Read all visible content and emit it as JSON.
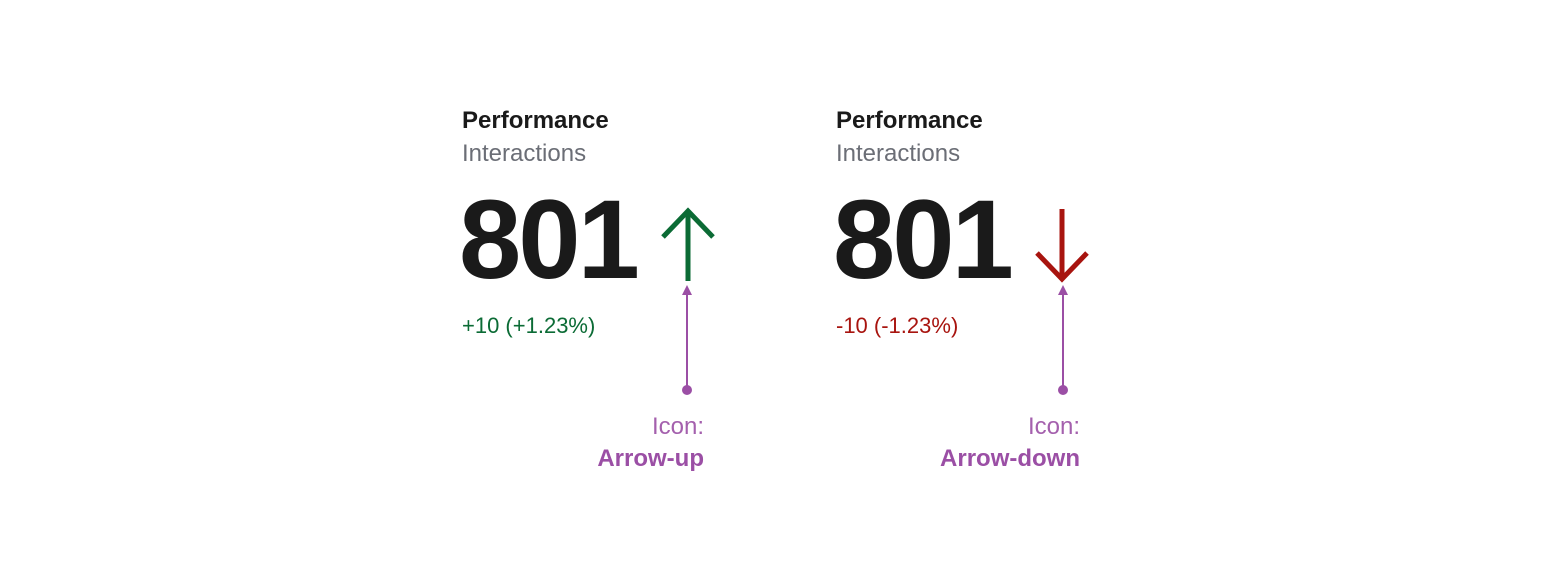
{
  "cards": [
    {
      "title": "Performance",
      "subtitle": "Interactions",
      "value": "801",
      "change": "+10 (+1.23%)",
      "trend": "up",
      "icon": "arrow-up-icon",
      "color": "#0b6b35",
      "annotation": {
        "label": "Icon:",
        "value": "Arrow-up"
      }
    },
    {
      "title": "Performance",
      "subtitle": "Interactions",
      "value": "801",
      "change": "-10 (-1.23%)",
      "trend": "down",
      "icon": "arrow-down-icon",
      "color": "#a8140f",
      "annotation": {
        "label": "Icon:",
        "value": "Arrow-down"
      }
    }
  ],
  "annotation_color": "#9b4fa5"
}
